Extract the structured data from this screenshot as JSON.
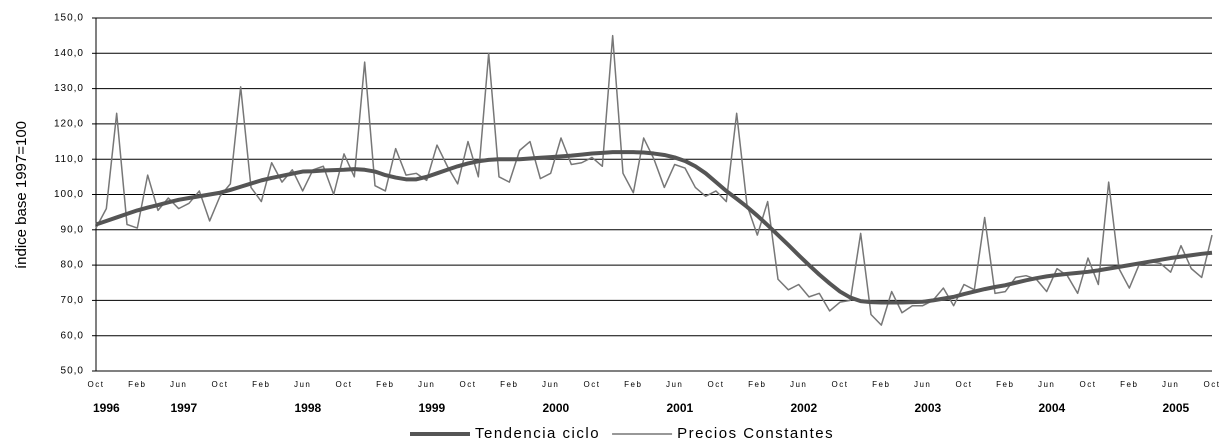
{
  "chart_data": {
    "type": "line",
    "y_label": "índice base 1997=100",
    "categories": [
      "Oct",
      null,
      null,
      null,
      "Feb",
      null,
      null,
      null,
      "Jun",
      null,
      null,
      null,
      "Oct",
      null,
      null,
      null,
      "Feb",
      null,
      null,
      null,
      "Jun",
      null,
      null,
      null,
      "Oct",
      null,
      null,
      null,
      "Feb",
      null,
      null,
      null,
      "Jun",
      null,
      null,
      null,
      "Oct",
      null,
      null,
      null,
      "Feb",
      null,
      null,
      null,
      "Jun",
      null,
      null,
      null,
      "Oct",
      null,
      null,
      null,
      "Feb",
      null,
      null,
      null,
      "Jun",
      null,
      null,
      null,
      "Oct",
      null,
      null,
      null,
      "Feb",
      null,
      null,
      null,
      "Jun",
      null,
      null,
      null,
      "Oct",
      null,
      null,
      null,
      "Feb",
      null,
      null,
      null,
      "Jun",
      null,
      null,
      null,
      "Oct",
      null,
      null,
      null,
      "Feb",
      null,
      null,
      null,
      "Jun",
      null,
      null,
      null,
      "Oct",
      null,
      null,
      null,
      "Feb",
      null,
      null,
      null,
      "Jun",
      null,
      null,
      null,
      "Oct"
    ],
    "year_labels": [
      "1996",
      "1997",
      "1998",
      "1999",
      "2000",
      "2001",
      "2002",
      "2003",
      "2004",
      "2005"
    ],
    "ylim": [
      50,
      150
    ],
    "yticks": [
      {
        "value": 50,
        "label": "50,0"
      },
      {
        "value": 60,
        "label": "60,0"
      },
      {
        "value": 70,
        "label": "70,0"
      },
      {
        "value": 80,
        "label": "80,0"
      },
      {
        "value": 90,
        "label": "90,0"
      },
      {
        "value": 100,
        "label": "100,0"
      },
      {
        "value": 110,
        "label": "110,0"
      },
      {
        "value": 120,
        "label": "120,0"
      },
      {
        "value": 130,
        "label": "130,0"
      },
      {
        "value": 140,
        "label": "140,0"
      },
      {
        "value": 150,
        "label": "150,0"
      }
    ],
    "grid": true,
    "series": [
      {
        "name": "Tendencia ciclo",
        "color": "#555555",
        "width": 4,
        "values": [
          91.5,
          92.5,
          93.5,
          94.5,
          95.5,
          96.3,
          97,
          97.8,
          98.5,
          99,
          99.5,
          100,
          100.5,
          101.3,
          102.2,
          103.1,
          104,
          104.7,
          105.3,
          105.9,
          106.5,
          106.6,
          106.8,
          106.9,
          107,
          107.2,
          107,
          106.5,
          105.5,
          104.8,
          104.3,
          104.3,
          105,
          106,
          107,
          108,
          108.8,
          109.4,
          109.8,
          110,
          110,
          110,
          110.2,
          110.4,
          110.6,
          110.8,
          111,
          111.3,
          111.6,
          111.8,
          112,
          112,
          112,
          111.9,
          111.6,
          111.2,
          110.5,
          109.5,
          108,
          106,
          103.5,
          101,
          98.8,
          96.5,
          94,
          91.3,
          88.5,
          85.7,
          82.8,
          80,
          77.3,
          74.8,
          72.5,
          70.8,
          69.8,
          69.5,
          69.4,
          69.4,
          69.4,
          69.5,
          69.6,
          70,
          70.5,
          71,
          71.8,
          72.5,
          73.2,
          73.8,
          74.3,
          75,
          75.7,
          76.3,
          76.8,
          77.2,
          77.5,
          77.8,
          78.1,
          78.5,
          79,
          79.5,
          80,
          80.5,
          81,
          81.5,
          82,
          82.4,
          82.8,
          83.2,
          83.5
        ]
      },
      {
        "name": "Precios Constantes",
        "color": "#777777",
        "width": 1.5,
        "values": [
          90.5,
          96,
          123,
          91.5,
          90.5,
          105.5,
          95.5,
          99,
          96,
          97.5,
          101,
          92.5,
          99.5,
          103,
          130.5,
          102,
          98,
          109,
          103.5,
          107,
          101,
          107,
          108,
          100,
          111.5,
          105,
          137.5,
          102.5,
          101,
          113,
          105.5,
          106,
          104,
          114,
          108,
          103,
          115,
          105,
          140,
          105,
          103.5,
          112.5,
          115,
          104.5,
          106,
          116,
          108.5,
          109,
          110.5,
          108,
          145,
          106,
          100.5,
          116,
          110,
          102,
          108.5,
          107.5,
          102,
          99.5,
          101,
          98,
          123,
          97,
          88.5,
          98,
          76,
          73,
          74.5,
          71,
          72,
          67,
          69.5,
          70,
          89,
          66,
          63,
          72.5,
          66.5,
          68.5,
          68.5,
          70,
          73.5,
          68.5,
          74.5,
          73,
          93.5,
          72,
          72.5,
          76.5,
          77,
          76,
          72.5,
          79,
          77,
          72,
          82,
          74.5,
          103.5,
          79,
          73.5,
          80.5,
          81,
          80.5,
          78,
          85.5,
          79,
          76.5,
          88.5
        ]
      }
    ]
  }
}
